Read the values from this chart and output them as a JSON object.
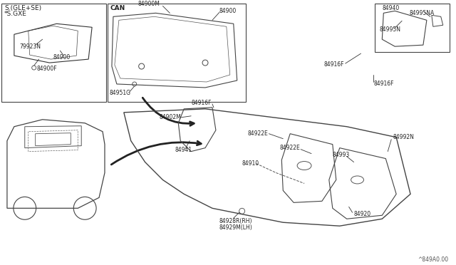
{
  "bg_color": "#ffffff",
  "fig_width": 6.4,
  "fig_height": 3.72,
  "watermark": "^849A0.00",
  "labels": {
    "top_left_box_title1": "S.(GLE+SE)",
    "top_left_box_title2": "*S.GXE",
    "top_left_ref1": "79923N",
    "top_left_ref2": "84900",
    "top_left_ref3": "84900F",
    "mid_box_title": "CAN",
    "mid_box_ref1": "84900M",
    "mid_box_ref2": "84900",
    "mid_box_ref3": "84951G",
    "top_right_ref1": "84940",
    "top_right_ref2": "84995N",
    "top_right_ref3": "84995NA",
    "right_mid_ref1": "84916F",
    "right_mid_ref2": "84916F",
    "main_ref1": "84902M",
    "main_ref2": "84916F",
    "main_ref3": "84922E",
    "main_ref4": "84922E",
    "main_ref5": "84993",
    "main_ref6": "84992N",
    "main_ref7": "84941",
    "main_ref8": "84910",
    "main_ref9": "84920",
    "main_ref10": "84928R(RH)",
    "main_ref11": "84929M(LH)"
  }
}
